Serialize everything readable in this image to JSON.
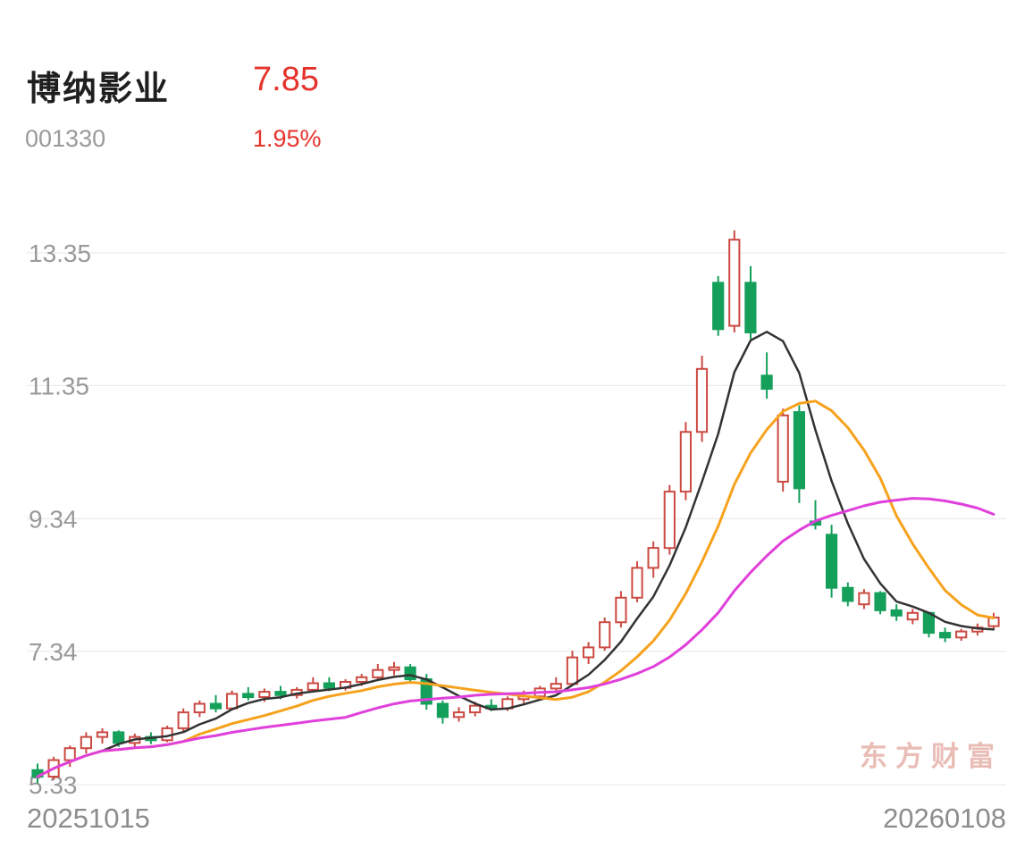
{
  "header": {
    "stock_name": "博纳影业",
    "price": "7.85",
    "stock_code": "001330",
    "change_percent": "1.95%"
  },
  "watermark_text": "东方财富",
  "colors": {
    "up": "#cb4a42",
    "down": "#14a05b",
    "price_text": "#e5332c",
    "grid": "#ececec",
    "axis_text": "#999999",
    "watermark": "#e2a89e"
  },
  "chart_data": {
    "type": "candlestick",
    "title": "",
    "x_axis_labels": [
      "20251015",
      "20260108"
    ],
    "y_axis_ticks": [
      13.35,
      11.35,
      9.34,
      7.34,
      5.33
    ],
    "ylim": [
      5.2,
      13.8
    ],
    "grid": true,
    "last_price": 7.85,
    "change_percent": 1.95,
    "candles_format": [
      "open",
      "high",
      "low",
      "close"
    ],
    "candles": [
      [
        5.55,
        5.65,
        5.35,
        5.45
      ],
      [
        5.45,
        5.75,
        5.4,
        5.7
      ],
      [
        5.7,
        5.92,
        5.6,
        5.88
      ],
      [
        5.88,
        6.12,
        5.8,
        6.05
      ],
      [
        6.05,
        6.18,
        5.95,
        6.12
      ],
      [
        6.12,
        6.15,
        5.9,
        5.96
      ],
      [
        5.96,
        6.1,
        5.9,
        6.05
      ],
      [
        6.05,
        6.12,
        5.94,
        6.0
      ],
      [
        6.0,
        6.22,
        5.97,
        6.18
      ],
      [
        6.18,
        6.48,
        6.12,
        6.42
      ],
      [
        6.42,
        6.6,
        6.35,
        6.55
      ],
      [
        6.55,
        6.68,
        6.42,
        6.48
      ],
      [
        6.48,
        6.75,
        6.45,
        6.7
      ],
      [
        6.7,
        6.8,
        6.6,
        6.65
      ],
      [
        6.65,
        6.78,
        6.58,
        6.73
      ],
      [
        6.73,
        6.82,
        6.62,
        6.68
      ],
      [
        6.68,
        6.8,
        6.63,
        6.76
      ],
      [
        6.76,
        6.95,
        6.72,
        6.86
      ],
      [
        6.86,
        6.95,
        6.74,
        6.79
      ],
      [
        6.79,
        6.92,
        6.75,
        6.88
      ],
      [
        6.88,
        7.0,
        6.82,
        6.95
      ],
      [
        6.95,
        7.15,
        6.9,
        7.06
      ],
      [
        7.06,
        7.18,
        6.98,
        7.1
      ],
      [
        7.1,
        7.15,
        6.86,
        6.92
      ],
      [
        6.92,
        7.0,
        6.46,
        6.55
      ],
      [
        6.55,
        6.6,
        6.25,
        6.35
      ],
      [
        6.35,
        6.5,
        6.28,
        6.42
      ],
      [
        6.42,
        6.58,
        6.36,
        6.52
      ],
      [
        6.52,
        6.62,
        6.44,
        6.48
      ],
      [
        6.48,
        6.66,
        6.44,
        6.62
      ],
      [
        6.62,
        6.75,
        6.56,
        6.66
      ],
      [
        6.66,
        6.82,
        6.62,
        6.78
      ],
      [
        6.78,
        6.95,
        6.74,
        6.85
      ],
      [
        6.85,
        7.35,
        6.82,
        7.25
      ],
      [
        7.25,
        7.48,
        7.15,
        7.4
      ],
      [
        7.4,
        7.85,
        7.35,
        7.78
      ],
      [
        7.78,
        8.25,
        7.7,
        8.15
      ],
      [
        8.15,
        8.7,
        8.08,
        8.6
      ],
      [
        8.6,
        9.0,
        8.45,
        8.9
      ],
      [
        8.9,
        9.85,
        8.8,
        9.75
      ],
      [
        9.75,
        10.8,
        9.62,
        10.65
      ],
      [
        10.65,
        11.8,
        10.5,
        11.6
      ],
      [
        12.9,
        13.0,
        12.1,
        12.2
      ],
      [
        12.25,
        13.69,
        12.15,
        13.55
      ],
      [
        12.9,
        13.15,
        12.05,
        12.15
      ],
      [
        11.5,
        11.85,
        11.15,
        11.3
      ],
      [
        9.9,
        11.0,
        9.75,
        10.9
      ],
      [
        10.95,
        11.05,
        9.58,
        9.8
      ],
      [
        9.3,
        9.62,
        9.18,
        9.25
      ],
      [
        9.1,
        9.25,
        8.15,
        8.3
      ],
      [
        8.3,
        8.38,
        8.02,
        8.1
      ],
      [
        8.05,
        8.28,
        7.98,
        8.22
      ],
      [
        8.22,
        8.25,
        7.9,
        7.96
      ],
      [
        7.96,
        8.05,
        7.8,
        7.88
      ],
      [
        7.82,
        7.98,
        7.75,
        7.92
      ],
      [
        7.92,
        7.94,
        7.55,
        7.62
      ],
      [
        7.62,
        7.7,
        7.48,
        7.55
      ],
      [
        7.55,
        7.68,
        7.5,
        7.64
      ],
      [
        7.64,
        7.76,
        7.58,
        7.7
      ],
      [
        7.72,
        7.92,
        7.66,
        7.85
      ]
    ],
    "moving_averages": [
      {
        "name": "ma-short",
        "window": 5,
        "color": "#333333",
        "stroke_width": 2.5
      },
      {
        "name": "ma-medium",
        "window": 10,
        "color": "#f6a21d",
        "stroke_width": 3
      },
      {
        "name": "ma-long",
        "window": 20,
        "color": "#e040db",
        "stroke_width": 3
      }
    ]
  }
}
